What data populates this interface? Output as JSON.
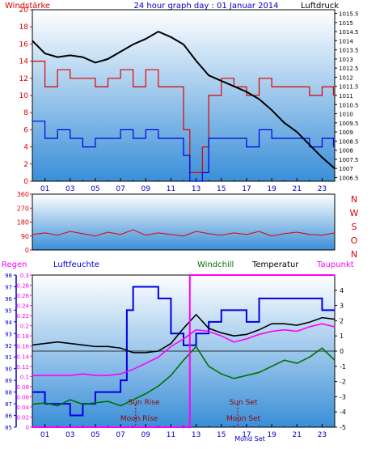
{
  "title": "24 hour graph day : 01 Januar 2014",
  "colors": {
    "wind": "#e00000",
    "gust": "#0000e0",
    "pressure": "#000000",
    "dir": "#e00000",
    "humidity": "#0000e0",
    "windchill": "#007000",
    "temperature": "#000000",
    "dewpoint": "#ff00ff",
    "rain": "#ff00ff",
    "moon": "#990000"
  },
  "chart_data": [
    {
      "type": "line",
      "left_axis_label": "Windstärke",
      "right_axis_label": "Luftdruck",
      "x_ticks": [
        "01",
        "03",
        "05",
        "07",
        "09",
        "11",
        "13",
        "15",
        "17",
        "19",
        "21",
        "23"
      ],
      "y_left_ticks": [
        "0",
        "2",
        "4",
        "6",
        "8",
        "10",
        "12",
        "14",
        "16",
        "18",
        "20"
      ],
      "y_left_range": [
        0,
        20
      ],
      "y_right_ticks": [
        "1006.5",
        "1007",
        "1007.5",
        "1008",
        "1008.5",
        "1009",
        "1009.5",
        "1010",
        "1010.5",
        "1011",
        "1011.5",
        "1012",
        "1012.5",
        "1013",
        "1013.5",
        "1014",
        "1014.5",
        "1015",
        "1015.5"
      ],
      "y_right_range": [
        1006.3,
        1015.7
      ],
      "series": [
        {
          "color_key": "wind",
          "axis": "left",
          "x": [
            0,
            1,
            2,
            3,
            4,
            5,
            6,
            7,
            8,
            9,
            10,
            11,
            12,
            12.5,
            13,
            13.5,
            14,
            15,
            16,
            17,
            18,
            19,
            20,
            21,
            22,
            23,
            23.9
          ],
          "y": [
            14,
            11,
            13,
            12,
            12,
            11,
            12,
            13,
            11,
            13,
            11,
            11,
            6,
            1,
            1,
            4,
            10,
            12,
            11,
            10,
            12,
            11,
            11,
            11,
            10,
            11,
            10
          ]
        },
        {
          "color_key": "gust",
          "axis": "left",
          "x": [
            0,
            1,
            2,
            3,
            4,
            5,
            6,
            7,
            8,
            9,
            10,
            11,
            12,
            12.5,
            13,
            13.5,
            14,
            15,
            16,
            17,
            18,
            19,
            20,
            21,
            22,
            23,
            23.9
          ],
          "y": [
            7,
            5,
            6,
            5,
            4,
            5,
            5,
            6,
            5,
            6,
            5,
            5,
            3,
            0,
            0,
            1,
            5,
            5,
            5,
            4,
            6,
            5,
            5,
            5,
            4,
            5,
            4
          ]
        },
        {
          "color_key": "pressure",
          "axis": "right",
          "x": [
            0,
            1,
            2,
            3,
            4,
            5,
            6,
            7,
            8,
            9,
            10,
            11,
            12,
            13,
            14,
            15,
            16,
            17,
            18,
            19,
            20,
            21,
            22,
            23,
            24
          ],
          "y": [
            1014.0,
            1013.3,
            1013.1,
            1013.2,
            1013.1,
            1012.8,
            1013.0,
            1013.4,
            1013.8,
            1014.1,
            1014.5,
            1014.2,
            1013.8,
            1012.9,
            1012.1,
            1011.8,
            1011.5,
            1011.2,
            1010.8,
            1010.2,
            1009.5,
            1009.0,
            1008.3,
            1007.6,
            1007.0
          ]
        }
      ]
    },
    {
      "type": "line",
      "y_ticks": [
        "0",
        "90",
        "180",
        "270",
        "360"
      ],
      "y_range": [
        0,
        360
      ],
      "compass": [
        "N",
        "W",
        "S",
        "O",
        "N"
      ],
      "series": [
        {
          "color_key": "dir",
          "x": [
            0,
            1,
            2,
            3,
            4,
            5,
            6,
            7,
            8,
            9,
            10,
            11,
            12,
            13,
            14,
            15,
            16,
            17,
            18,
            19,
            20,
            21,
            22,
            23,
            24
          ],
          "y": [
            100,
            110,
            95,
            120,
            105,
            90,
            115,
            100,
            130,
            95,
            110,
            100,
            90,
            120,
            105,
            95,
            110,
            100,
            120,
            90,
            105,
            115,
            100,
            95,
            110
          ]
        }
      ]
    },
    {
      "type": "line",
      "labels": {
        "rain": "Regen",
        "humidity": "Luftfeuchte",
        "windchill": "Windchill",
        "temperature": "Temperatur",
        "dewpoint": "Taupunkt"
      },
      "x_ticks": [
        "01",
        "03",
        "05",
        "07",
        "09",
        "11",
        "13",
        "15",
        "17",
        "19",
        "21",
        "23"
      ],
      "y_humidity_ticks": [
        "85",
        "86",
        "87",
        "88",
        "89",
        "90",
        "91",
        "92",
        "93",
        "94",
        "95",
        "96",
        "97",
        "98"
      ],
      "y_humidity_range": [
        85,
        98
      ],
      "y_rain_ticks": [
        "0",
        "0.02",
        "0.04",
        "0.06",
        "0.08",
        "0.1",
        "0.12",
        "0.14",
        "0.16",
        "0.18",
        "0.2",
        "0.22",
        "0.24",
        "0.26",
        "0.28",
        "0.3"
      ],
      "y_rain_range": [
        0,
        0.3
      ],
      "y_temp_ticks": [
        "-5",
        "-4",
        "-3",
        "-2",
        "-1",
        "0",
        "1",
        "2",
        "3",
        "4"
      ],
      "y_temp_range": [
        -5,
        5
      ],
      "annotations": {
        "sun_rise": "Sun Rise",
        "sun_set": "Sun Set",
        "moon_rise": "Moon Rise",
        "moon_set": "Moon Set",
        "moon_set_2": "Mond Set"
      },
      "series": [
        {
          "color_key": "humidity",
          "axis": "humidity",
          "x": [
            0,
            1,
            2,
            3,
            4,
            5,
            6,
            7,
            7.5,
            8,
            9,
            10,
            11,
            12,
            13,
            14,
            15,
            16,
            17,
            18,
            19,
            20,
            21,
            22,
            23,
            24
          ],
          "y": [
            88,
            87,
            87,
            86,
            87,
            88,
            88,
            89,
            95,
            97,
            97,
            96,
            93,
            92,
            93,
            94,
            95,
            95,
            94,
            96,
            96,
            96,
            96,
            96,
            95,
            95
          ]
        },
        {
          "color_key": "temperature",
          "axis": "temp",
          "x": [
            0,
            1,
            2,
            3,
            4,
            5,
            6,
            7,
            8,
            9,
            10,
            11,
            12,
            13,
            14,
            15,
            16,
            17,
            18,
            19,
            20,
            21,
            22,
            23,
            24
          ],
          "y": [
            0.4,
            0.5,
            0.6,
            0.5,
            0.4,
            0.3,
            0.3,
            0.2,
            -0.1,
            -0.1,
            0.0,
            0.5,
            1.5,
            2.4,
            1.5,
            1.2,
            1.0,
            1.1,
            1.4,
            1.8,
            1.8,
            1.7,
            1.9,
            2.2,
            2.1
          ]
        },
        {
          "color_key": "dewpoint",
          "axis": "temp",
          "x": [
            0,
            1,
            2,
            3,
            4,
            5,
            6,
            7,
            8,
            9,
            10,
            11,
            12,
            13,
            14,
            15,
            16,
            17,
            18,
            19,
            20,
            21,
            22,
            23,
            24
          ],
          "y": [
            -1.6,
            -1.6,
            -1.6,
            -1.6,
            -1.5,
            -1.6,
            -1.6,
            -1.5,
            -1.2,
            -0.8,
            -0.4,
            0.3,
            0.8,
            1.4,
            1.3,
            1.0,
            0.6,
            0.8,
            1.1,
            1.3,
            1.4,
            1.3,
            1.6,
            1.8,
            1.6
          ]
        },
        {
          "color_key": "windchill",
          "axis": "temp",
          "x": [
            0,
            1,
            2,
            3,
            4,
            5,
            6,
            7,
            8,
            9,
            10,
            11,
            12,
            13,
            14,
            15,
            16,
            17,
            18,
            19,
            20,
            21,
            22,
            23,
            24
          ],
          "y": [
            -3.5,
            -3.4,
            -3.6,
            -3.2,
            -3.5,
            -3.4,
            -3.3,
            -3.6,
            -3.2,
            -2.8,
            -2.3,
            -1.6,
            -0.6,
            0.3,
            -1.0,
            -1.5,
            -1.8,
            -1.6,
            -1.4,
            -1.0,
            -0.6,
            -0.8,
            -0.4,
            0.2,
            -0.6
          ]
        },
        {
          "color_key": "rain",
          "axis": "rain",
          "x": [
            0,
            12.5,
            12.5,
            24
          ],
          "y": [
            0,
            0,
            0.3,
            0.3
          ]
        }
      ]
    }
  ]
}
